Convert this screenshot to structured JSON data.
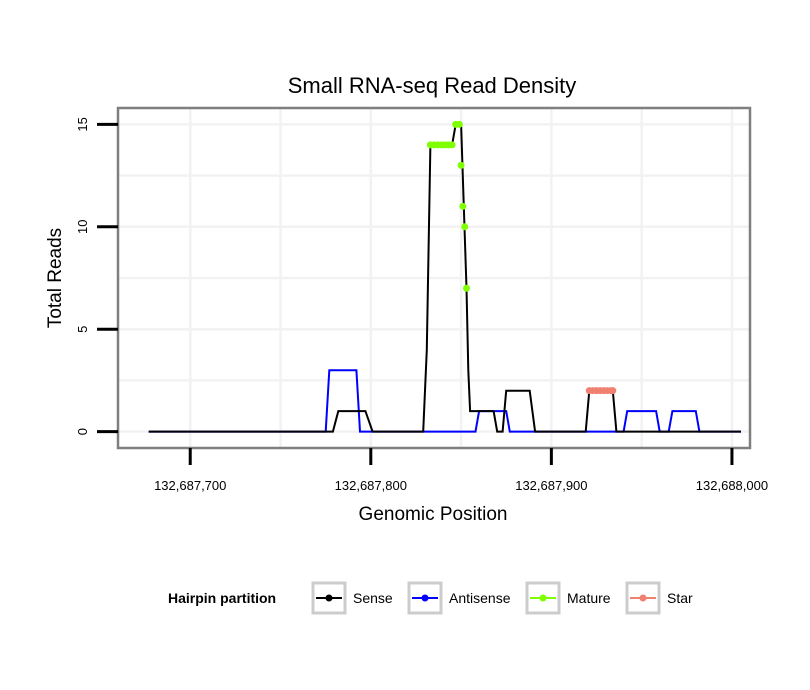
{
  "chart_data": {
    "type": "line",
    "title": "Small RNA-seq Read Density",
    "xlabel": "Genomic Position",
    "ylabel": "Total Reads",
    "xlim": [
      132687660,
      132688010
    ],
    "ylim": [
      -0.8,
      15.8
    ],
    "x_ticks": [
      132687700,
      132687800,
      132687900,
      132688000
    ],
    "x_tick_labels": [
      "132,687,700",
      "132,687,800",
      "132,687,900",
      "132,688,000"
    ],
    "y_ticks": [
      0,
      5,
      10,
      15
    ],
    "y_tick_labels": [
      "0",
      "5",
      "10",
      "15"
    ],
    "grid": true,
    "legend": {
      "title": "Hairpin partition",
      "position": "bottom",
      "entries": [
        "Sense",
        "Antisense",
        "Mature",
        "Star"
      ]
    },
    "series": [
      {
        "name": "Sense",
        "color": "#000000",
        "style": "line",
        "points": [
          [
            132687677,
            0
          ],
          [
            132687779,
            0
          ],
          [
            132687782,
            1
          ],
          [
            132687797,
            1
          ],
          [
            132687801,
            0
          ],
          [
            132687829,
            0
          ],
          [
            132687831,
            4
          ],
          [
            132687833,
            14
          ],
          [
            132687845,
            14
          ],
          [
            132687847,
            15
          ],
          [
            132687850,
            15
          ],
          [
            132687853,
            7
          ],
          [
            132687854,
            3
          ],
          [
            132687855,
            1
          ],
          [
            132687868,
            1
          ],
          [
            132687870,
            0
          ],
          [
            132687873,
            0
          ],
          [
            132687875,
            2
          ],
          [
            132687888,
            2
          ],
          [
            132687891,
            0
          ],
          [
            132687919,
            0
          ],
          [
            132687921,
            2
          ],
          [
            132687934,
            2
          ],
          [
            132687936,
            0
          ],
          [
            132688005,
            0
          ]
        ]
      },
      {
        "name": "Antisense",
        "color": "#0000ff",
        "style": "line",
        "points": [
          [
            132687677,
            0
          ],
          [
            132687775,
            0
          ],
          [
            132687777,
            3
          ],
          [
            132687792,
            3
          ],
          [
            132687794,
            0
          ],
          [
            132687858,
            0
          ],
          [
            132687860,
            1
          ],
          [
            132687875,
            1
          ],
          [
            132687877,
            0
          ],
          [
            132687940,
            0
          ],
          [
            132687942,
            1
          ],
          [
            132687958,
            1
          ],
          [
            132687960,
            0
          ],
          [
            132687965,
            0
          ],
          [
            132687967,
            1
          ],
          [
            132687980,
            1
          ],
          [
            132687982,
            0
          ],
          [
            132688005,
            0
          ]
        ]
      },
      {
        "name": "Mature",
        "color": "#7fff00",
        "style": "points",
        "points": [
          [
            132687833,
            14
          ],
          [
            132687835,
            14
          ],
          [
            132687837,
            14
          ],
          [
            132687839,
            14
          ],
          [
            132687841,
            14
          ],
          [
            132687843,
            14
          ],
          [
            132687845,
            14
          ],
          [
            132687847,
            15
          ],
          [
            132687849,
            15
          ],
          [
            132687850,
            13
          ],
          [
            132687851,
            11
          ],
          [
            132687852,
            10
          ],
          [
            132687853,
            7
          ]
        ]
      },
      {
        "name": "Star",
        "color": "#f08070",
        "style": "points",
        "points": [
          [
            132687921,
            2
          ],
          [
            132687923,
            2
          ],
          [
            132687925,
            2
          ],
          [
            132687927,
            2
          ],
          [
            132687929,
            2
          ],
          [
            132687931,
            2
          ],
          [
            132687933,
            2
          ],
          [
            132687934,
            2
          ]
        ]
      }
    ]
  }
}
